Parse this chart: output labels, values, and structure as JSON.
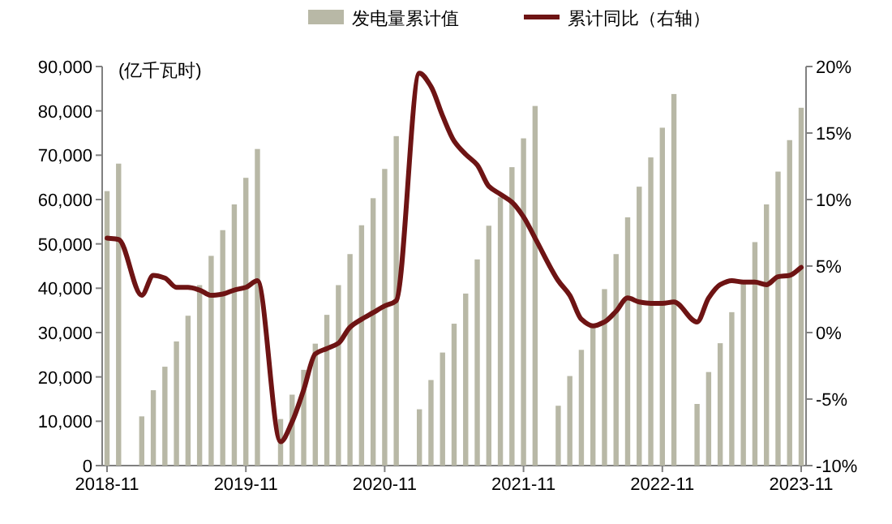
{
  "chart_data": {
    "type": "bar",
    "ylabel": "(亿千瓦时)",
    "categories": [
      "2018-11",
      null,
      null,
      null,
      null,
      null,
      null,
      null,
      null,
      null,
      null,
      null,
      "2019-11",
      null,
      null,
      null,
      null,
      null,
      null,
      null,
      null,
      null,
      null,
      null,
      "2020-11",
      null,
      null,
      null,
      null,
      null,
      null,
      null,
      null,
      null,
      null,
      null,
      "2021-11",
      null,
      null,
      null,
      null,
      null,
      null,
      null,
      null,
      null,
      null,
      null,
      "2022-11",
      null,
      null,
      null,
      null,
      null,
      null,
      null,
      null,
      null,
      null,
      null,
      "2023-11"
    ],
    "series": [
      {
        "name": "发电量累计值",
        "color": "#b8b8a6",
        "values": [
          61900,
          68100,
          null,
          11100,
          17000,
          22300,
          28000,
          33800,
          40700,
          47300,
          53100,
          58900,
          64900,
          71400,
          null,
          10500,
          16000,
          21600,
          27500,
          34000,
          40700,
          47700,
          54200,
          60300,
          66900,
          74300,
          null,
          12700,
          19300,
          25500,
          32000,
          38800,
          46500,
          54100,
          60500,
          67300,
          73800,
          81100,
          null,
          13500,
          20200,
          26100,
          31200,
          39800,
          47700,
          56000,
          62900,
          69500,
          76200,
          83800,
          null,
          13900,
          21100,
          27600,
          34600,
          41400,
          50400,
          58900,
          66300,
          73400,
          80700
        ]
      },
      {
        "name": "累计同比（右轴）",
        "type": "line",
        "axis": "y2",
        "color": "#6e1414",
        "values": [
          7.1,
          7.0,
          null,
          2.8,
          4.3,
          4.1,
          3.4,
          3.4,
          3.2,
          2.8,
          2.9,
          3.2,
          3.4,
          3.9,
          null,
          -8.2,
          -6.7,
          -4.3,
          -1.6,
          -1.2,
          -0.8,
          0.4,
          1.0,
          1.5,
          2.0,
          2.4,
          null,
          19.5,
          18.5,
          16.3,
          14.4,
          13.4,
          12.6,
          11.0,
          10.4,
          9.8,
          8.7,
          7.1,
          null,
          3.9,
          2.8,
          1.0,
          0.5,
          0.8,
          1.6,
          2.6,
          2.3,
          2.2,
          2.2,
          2.3,
          null,
          0.8,
          2.6,
          3.6,
          3.9,
          3.8,
          3.8,
          3.6,
          4.2,
          4.3,
          4.9
        ]
      }
    ],
    "ylim": [
      0,
      90000
    ],
    "yticks": [
      {
        "value": 0,
        "label": "0"
      },
      {
        "value": 10000,
        "label": "10,000"
      },
      {
        "value": 20000,
        "label": "20,000"
      },
      {
        "value": 30000,
        "label": "30,000"
      },
      {
        "value": 40000,
        "label": "40,000"
      },
      {
        "value": 50000,
        "label": "50,000"
      },
      {
        "value": 60000,
        "label": "60,000"
      },
      {
        "value": 70000,
        "label": "70,000"
      },
      {
        "value": 80000,
        "label": "80,000"
      },
      {
        "value": 90000,
        "label": "90,000"
      }
    ],
    "y2lim": [
      -10,
      20
    ],
    "y2ticks": [
      {
        "value": -10,
        "label": "-10%"
      },
      {
        "value": -5,
        "label": "-5%"
      },
      {
        "value": 0,
        "label": "0%"
      },
      {
        "value": 5,
        "label": "5%"
      },
      {
        "value": 10,
        "label": "10%"
      },
      {
        "value": 15,
        "label": "15%"
      },
      {
        "value": 20,
        "label": "20%"
      }
    ],
    "legend": "top",
    "grid": false
  }
}
